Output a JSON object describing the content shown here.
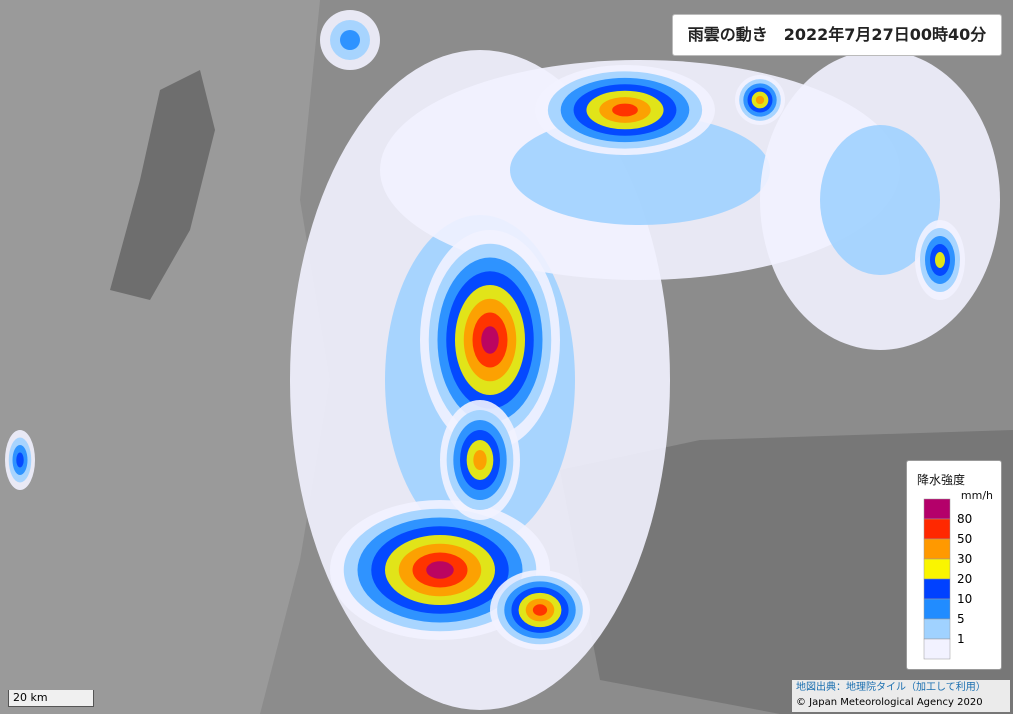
{
  "header": {
    "title": "雨雲の動き　2022年7月27日00時40分"
  },
  "legend": {
    "title": "降水強度",
    "unit": "mm/h",
    "levels": [
      80,
      50,
      30,
      20,
      10,
      5,
      1
    ],
    "colors": [
      "#b4006a",
      "#ff2800",
      "#ff9900",
      "#faf500",
      "#0041ff",
      "#218cff",
      "#a0d2ff",
      "#f2f2ff"
    ]
  },
  "scale": "20 km",
  "attribution": {
    "source": "地図出典：地理院タイル（加工して利用）",
    "copyright": "© Japan Meteorological Agency 2020"
  }
}
